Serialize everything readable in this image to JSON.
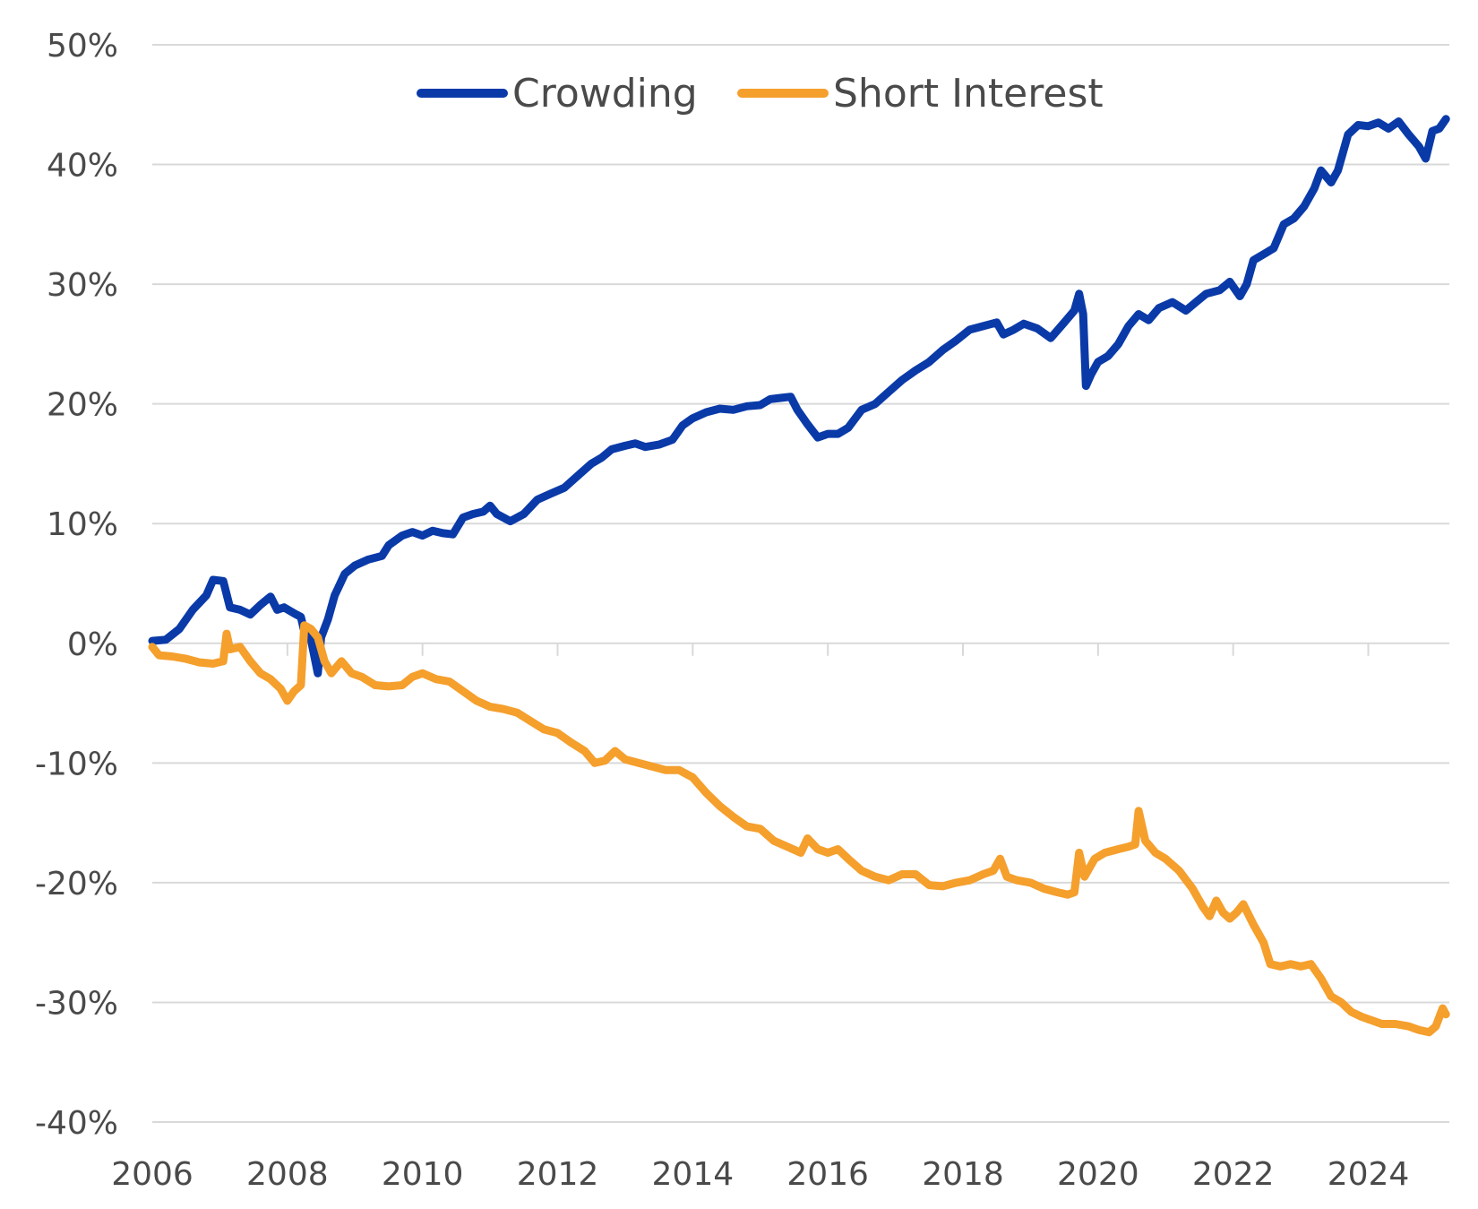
{
  "chart_data": {
    "type": "line",
    "title": "",
    "xlabel": "",
    "ylabel": "",
    "xlim": [
      2006,
      2025.2
    ],
    "ylim": [
      -40,
      50
    ],
    "y_ticks": [
      {
        "value": 50,
        "label": "50%"
      },
      {
        "value": 40,
        "label": "40%"
      },
      {
        "value": 30,
        "label": "30%"
      },
      {
        "value": 20,
        "label": "20%"
      },
      {
        "value": 10,
        "label": "10%"
      },
      {
        "value": 0,
        "label": "0%"
      },
      {
        "value": -10,
        "label": "-10%"
      },
      {
        "value": -20,
        "label": "-20%"
      },
      {
        "value": -30,
        "label": "-30%"
      },
      {
        "value": -40,
        "label": "-40%"
      }
    ],
    "x_ticks": [
      {
        "value": 2006,
        "label": "2006"
      },
      {
        "value": 2008,
        "label": "2008"
      },
      {
        "value": 2010,
        "label": "2010"
      },
      {
        "value": 2012,
        "label": "2012"
      },
      {
        "value": 2014,
        "label": "2014"
      },
      {
        "value": 2016,
        "label": "2016"
      },
      {
        "value": 2018,
        "label": "2018"
      },
      {
        "value": 2020,
        "label": "2020"
      },
      {
        "value": 2022,
        "label": "2022"
      },
      {
        "value": 2024,
        "label": "2024"
      }
    ],
    "grid": "horizontal",
    "legend": "top-center",
    "series": [
      {
        "name": "Crowding",
        "color": "#0a3aa8",
        "points": [
          [
            2006.0,
            0.2
          ],
          [
            2006.2,
            0.3
          ],
          [
            2006.4,
            1.2
          ],
          [
            2006.6,
            2.8
          ],
          [
            2006.8,
            4.0
          ],
          [
            2006.9,
            5.3
          ],
          [
            2007.05,
            5.2
          ],
          [
            2007.15,
            3.0
          ],
          [
            2007.3,
            2.8
          ],
          [
            2007.45,
            2.4
          ],
          [
            2007.6,
            3.2
          ],
          [
            2007.75,
            3.9
          ],
          [
            2007.85,
            2.8
          ],
          [
            2007.95,
            3.0
          ],
          [
            2008.1,
            2.5
          ],
          [
            2008.2,
            2.2
          ],
          [
            2008.25,
            1.0
          ],
          [
            2008.35,
            0.3
          ],
          [
            2008.45,
            -2.5
          ],
          [
            2008.5,
            0.5
          ],
          [
            2008.6,
            2.0
          ],
          [
            2008.7,
            4.0
          ],
          [
            2008.85,
            5.8
          ],
          [
            2009.0,
            6.5
          ],
          [
            2009.2,
            7.0
          ],
          [
            2009.4,
            7.3
          ],
          [
            2009.5,
            8.2
          ],
          [
            2009.7,
            9.0
          ],
          [
            2009.85,
            9.3
          ],
          [
            2010.0,
            9.0
          ],
          [
            2010.15,
            9.4
          ],
          [
            2010.3,
            9.2
          ],
          [
            2010.45,
            9.1
          ],
          [
            2010.6,
            10.5
          ],
          [
            2010.75,
            10.8
          ],
          [
            2010.9,
            11.0
          ],
          [
            2011.0,
            11.5
          ],
          [
            2011.1,
            10.8
          ],
          [
            2011.3,
            10.2
          ],
          [
            2011.5,
            10.8
          ],
          [
            2011.7,
            12.0
          ],
          [
            2011.9,
            12.5
          ],
          [
            2012.1,
            13.0
          ],
          [
            2012.3,
            14.0
          ],
          [
            2012.5,
            15.0
          ],
          [
            2012.65,
            15.5
          ],
          [
            2012.8,
            16.2
          ],
          [
            2013.0,
            16.5
          ],
          [
            2013.15,
            16.7
          ],
          [
            2013.3,
            16.4
          ],
          [
            2013.5,
            16.6
          ],
          [
            2013.7,
            17.0
          ],
          [
            2013.85,
            18.2
          ],
          [
            2014.0,
            18.8
          ],
          [
            2014.2,
            19.3
          ],
          [
            2014.4,
            19.6
          ],
          [
            2014.6,
            19.5
          ],
          [
            2014.8,
            19.8
          ],
          [
            2015.0,
            19.9
          ],
          [
            2015.15,
            20.4
          ],
          [
            2015.3,
            20.5
          ],
          [
            2015.45,
            20.6
          ],
          [
            2015.55,
            19.5
          ],
          [
            2015.7,
            18.3
          ],
          [
            2015.85,
            17.2
          ],
          [
            2016.0,
            17.5
          ],
          [
            2016.15,
            17.5
          ],
          [
            2016.3,
            18.0
          ],
          [
            2016.5,
            19.5
          ],
          [
            2016.7,
            20.0
          ],
          [
            2016.9,
            21.0
          ],
          [
            2017.1,
            22.0
          ],
          [
            2017.3,
            22.8
          ],
          [
            2017.5,
            23.5
          ],
          [
            2017.7,
            24.5
          ],
          [
            2017.9,
            25.3
          ],
          [
            2018.1,
            26.2
          ],
          [
            2018.3,
            26.5
          ],
          [
            2018.5,
            26.8
          ],
          [
            2018.6,
            25.8
          ],
          [
            2018.75,
            26.2
          ],
          [
            2018.9,
            26.7
          ],
          [
            2019.1,
            26.3
          ],
          [
            2019.3,
            25.5
          ],
          [
            2019.5,
            26.8
          ],
          [
            2019.65,
            27.8
          ],
          [
            2019.72,
            29.2
          ],
          [
            2019.78,
            27.5
          ],
          [
            2019.82,
            21.5
          ],
          [
            2019.9,
            22.5
          ],
          [
            2020.0,
            23.5
          ],
          [
            2020.15,
            24.0
          ],
          [
            2020.3,
            25.0
          ],
          [
            2020.45,
            26.5
          ],
          [
            2020.6,
            27.5
          ],
          [
            2020.75,
            27.0
          ],
          [
            2020.9,
            28.0
          ],
          [
            2021.1,
            28.5
          ],
          [
            2021.3,
            27.8
          ],
          [
            2021.45,
            28.5
          ],
          [
            2021.6,
            29.2
          ],
          [
            2021.8,
            29.5
          ],
          [
            2021.95,
            30.2
          ],
          [
            2022.1,
            29.0
          ],
          [
            2022.2,
            30.0
          ],
          [
            2022.3,
            32.0
          ],
          [
            2022.45,
            32.5
          ],
          [
            2022.6,
            33.0
          ],
          [
            2022.75,
            35.0
          ],
          [
            2022.9,
            35.5
          ],
          [
            2023.05,
            36.5
          ],
          [
            2023.2,
            38.0
          ],
          [
            2023.3,
            39.5
          ],
          [
            2023.45,
            38.5
          ],
          [
            2023.55,
            39.5
          ],
          [
            2023.7,
            42.5
          ],
          [
            2023.85,
            43.3
          ],
          [
            2024.0,
            43.2
          ],
          [
            2024.15,
            43.5
          ],
          [
            2024.3,
            43.0
          ],
          [
            2024.45,
            43.6
          ],
          [
            2024.6,
            42.5
          ],
          [
            2024.75,
            41.5
          ],
          [
            2024.85,
            40.5
          ],
          [
            2024.95,
            42.8
          ],
          [
            2025.05,
            43.0
          ],
          [
            2025.15,
            43.8
          ]
        ]
      },
      {
        "name": "Short Interest",
        "color": "#f59f2c",
        "points": [
          [
            2006.0,
            -0.3
          ],
          [
            2006.1,
            -1.0
          ],
          [
            2006.3,
            -1.1
          ],
          [
            2006.5,
            -1.3
          ],
          [
            2006.7,
            -1.6
          ],
          [
            2006.9,
            -1.7
          ],
          [
            2007.05,
            -1.5
          ],
          [
            2007.1,
            0.8
          ],
          [
            2007.15,
            -0.5
          ],
          [
            2007.3,
            -0.3
          ],
          [
            2007.45,
            -1.5
          ],
          [
            2007.6,
            -2.5
          ],
          [
            2007.75,
            -3.0
          ],
          [
            2007.9,
            -3.8
          ],
          [
            2008.0,
            -4.8
          ],
          [
            2008.1,
            -4.0
          ],
          [
            2008.2,
            -3.5
          ],
          [
            2008.25,
            1.5
          ],
          [
            2008.35,
            1.2
          ],
          [
            2008.45,
            0.5
          ],
          [
            2008.55,
            -1.5
          ],
          [
            2008.65,
            -2.5
          ],
          [
            2008.8,
            -1.5
          ],
          [
            2008.95,
            -2.5
          ],
          [
            2009.1,
            -2.8
          ],
          [
            2009.3,
            -3.5
          ],
          [
            2009.5,
            -3.6
          ],
          [
            2009.7,
            -3.5
          ],
          [
            2009.85,
            -2.8
          ],
          [
            2010.0,
            -2.5
          ],
          [
            2010.2,
            -3.0
          ],
          [
            2010.4,
            -3.2
          ],
          [
            2010.6,
            -4.0
          ],
          [
            2010.8,
            -4.8
          ],
          [
            2011.0,
            -5.3
          ],
          [
            2011.2,
            -5.5
          ],
          [
            2011.4,
            -5.8
          ],
          [
            2011.6,
            -6.5
          ],
          [
            2011.8,
            -7.2
          ],
          [
            2012.0,
            -7.5
          ],
          [
            2012.2,
            -8.3
          ],
          [
            2012.4,
            -9.0
          ],
          [
            2012.55,
            -10.0
          ],
          [
            2012.7,
            -9.8
          ],
          [
            2012.85,
            -9.0
          ],
          [
            2013.0,
            -9.7
          ],
          [
            2013.2,
            -10.0
          ],
          [
            2013.4,
            -10.3
          ],
          [
            2013.6,
            -10.6
          ],
          [
            2013.8,
            -10.6
          ],
          [
            2014.0,
            -11.2
          ],
          [
            2014.2,
            -12.5
          ],
          [
            2014.4,
            -13.6
          ],
          [
            2014.6,
            -14.5
          ],
          [
            2014.8,
            -15.3
          ],
          [
            2015.0,
            -15.5
          ],
          [
            2015.2,
            -16.5
          ],
          [
            2015.4,
            -17.0
          ],
          [
            2015.6,
            -17.5
          ],
          [
            2015.7,
            -16.3
          ],
          [
            2015.85,
            -17.2
          ],
          [
            2016.0,
            -17.5
          ],
          [
            2016.15,
            -17.2
          ],
          [
            2016.3,
            -18.0
          ],
          [
            2016.5,
            -19.0
          ],
          [
            2016.7,
            -19.5
          ],
          [
            2016.9,
            -19.8
          ],
          [
            2017.1,
            -19.3
          ],
          [
            2017.3,
            -19.3
          ],
          [
            2017.5,
            -20.2
          ],
          [
            2017.7,
            -20.3
          ],
          [
            2017.9,
            -20.0
          ],
          [
            2018.1,
            -19.8
          ],
          [
            2018.3,
            -19.3
          ],
          [
            2018.45,
            -19.0
          ],
          [
            2018.55,
            -18.0
          ],
          [
            2018.65,
            -19.5
          ],
          [
            2018.8,
            -19.8
          ],
          [
            2019.0,
            -20.0
          ],
          [
            2019.2,
            -20.5
          ],
          [
            2019.4,
            -20.8
          ],
          [
            2019.55,
            -21.0
          ],
          [
            2019.65,
            -20.8
          ],
          [
            2019.72,
            -17.5
          ],
          [
            2019.8,
            -19.5
          ],
          [
            2019.95,
            -18.0
          ],
          [
            2020.1,
            -17.5
          ],
          [
            2020.3,
            -17.2
          ],
          [
            2020.45,
            -17.0
          ],
          [
            2020.55,
            -16.8
          ],
          [
            2020.6,
            -14.0
          ],
          [
            2020.7,
            -16.5
          ],
          [
            2020.85,
            -17.5
          ],
          [
            2021.0,
            -18.0
          ],
          [
            2021.2,
            -19.0
          ],
          [
            2021.4,
            -20.5
          ],
          [
            2021.55,
            -22.0
          ],
          [
            2021.65,
            -22.8
          ],
          [
            2021.75,
            -21.5
          ],
          [
            2021.85,
            -22.5
          ],
          [
            2021.95,
            -23.0
          ],
          [
            2022.05,
            -22.5
          ],
          [
            2022.15,
            -21.8
          ],
          [
            2022.3,
            -23.5
          ],
          [
            2022.45,
            -25.0
          ],
          [
            2022.55,
            -26.8
          ],
          [
            2022.7,
            -27.0
          ],
          [
            2022.85,
            -26.8
          ],
          [
            2023.0,
            -27.0
          ],
          [
            2023.15,
            -26.8
          ],
          [
            2023.3,
            -28.0
          ],
          [
            2023.45,
            -29.5
          ],
          [
            2023.6,
            -30.0
          ],
          [
            2023.75,
            -30.8
          ],
          [
            2023.9,
            -31.2
          ],
          [
            2024.05,
            -31.5
          ],
          [
            2024.2,
            -31.8
          ],
          [
            2024.4,
            -31.8
          ],
          [
            2024.6,
            -32.0
          ],
          [
            2024.75,
            -32.3
          ],
          [
            2024.9,
            -32.5
          ],
          [
            2025.0,
            -32.0
          ],
          [
            2025.1,
            -30.5
          ],
          [
            2025.15,
            -31.0
          ]
        ]
      }
    ]
  }
}
